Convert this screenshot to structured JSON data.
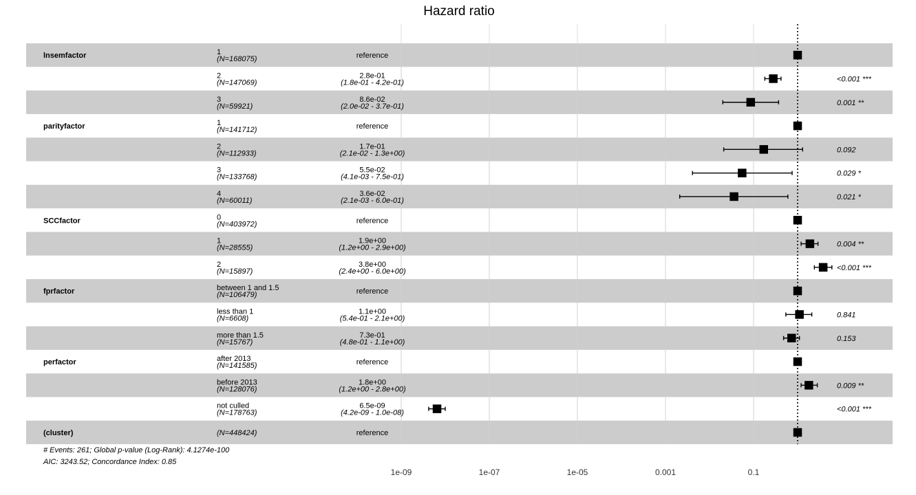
{
  "chart_data": {
    "type": "forest",
    "title": "Hazard ratio",
    "x_scale": "log",
    "x_ticks": [
      {
        "value": 1e-09,
        "label": "1e-09"
      },
      {
        "value": 1e-07,
        "label": "1e-07"
      },
      {
        "value": 1e-05,
        "label": "1e-05"
      },
      {
        "value": 0.001,
        "label": "0.001"
      },
      {
        "value": 0.1,
        "label": "0.1"
      }
    ],
    "xlim": [
      1e-09,
      1
    ],
    "reference_line": 1,
    "rows": [
      {
        "variable": "lnsemfactor",
        "level": "1",
        "n": "(N=168075)",
        "estimate": "reference",
        "ci": "",
        "p": "",
        "hr": 1,
        "lo": null,
        "hi": null
      },
      {
        "variable": "",
        "level": "2",
        "n": "(N=147069)",
        "estimate": "2.8e-01",
        "ci": "(1.8e-01 - 4.2e-01)",
        "p": "<0.001 ***",
        "hr": 0.28,
        "lo": 0.18,
        "hi": 0.42
      },
      {
        "variable": "",
        "level": "3",
        "n": "(N=59921)",
        "estimate": "8.6e-02",
        "ci": "(2.0e-02 - 3.7e-01)",
        "p": "0.001 **",
        "hr": 0.086,
        "lo": 0.02,
        "hi": 0.37
      },
      {
        "variable": "parityfactor",
        "level": "1",
        "n": "(N=141712)",
        "estimate": "reference",
        "ci": "",
        "p": "",
        "hr": 1,
        "lo": null,
        "hi": null
      },
      {
        "variable": "",
        "level": "2",
        "n": "(N=112933)",
        "estimate": "1.7e-01",
        "ci": "(2.1e-02 - 1.3e+00)",
        "p": "0.092",
        "hr": 0.17,
        "lo": 0.021,
        "hi": 1.3
      },
      {
        "variable": "",
        "level": "3",
        "n": "(N=133768)",
        "estimate": "5.5e-02",
        "ci": "(4.1e-03 - 7.5e-01)",
        "p": "0.029 *",
        "hr": 0.055,
        "lo": 0.0041,
        "hi": 0.75
      },
      {
        "variable": "",
        "level": "4",
        "n": "(N=60011)",
        "estimate": "3.6e-02",
        "ci": "(2.1e-03 - 6.0e-01)",
        "p": "0.021 *",
        "hr": 0.036,
        "lo": 0.0021,
        "hi": 0.6
      },
      {
        "variable": "SCCfactor",
        "level": "0",
        "n": "(N=403972)",
        "estimate": "reference",
        "ci": "",
        "p": "",
        "hr": 1,
        "lo": null,
        "hi": null
      },
      {
        "variable": "",
        "level": "1",
        "n": "(N=28555)",
        "estimate": "1.9e+00",
        "ci": "(1.2e+00 - 2.9e+00)",
        "p": "0.004 **",
        "hr": 1.9,
        "lo": 1.2,
        "hi": 2.9
      },
      {
        "variable": "",
        "level": "2",
        "n": "(N=15897)",
        "estimate": "3.8e+00",
        "ci": "(2.4e+00 - 6.0e+00)",
        "p": "<0.001 ***",
        "hr": 3.8,
        "lo": 2.4,
        "hi": 6.0
      },
      {
        "variable": "fprfactor",
        "level": "between 1 and 1.5",
        "n": "(N=106479)",
        "estimate": "reference",
        "ci": "",
        "p": "",
        "hr": 1,
        "lo": null,
        "hi": null
      },
      {
        "variable": "",
        "level": "less than 1",
        "n": "(N=6608)",
        "estimate": "1.1e+00",
        "ci": "(5.4e-01 - 2.1e+00)",
        "p": "0.841",
        "hr": 1.1,
        "lo": 0.54,
        "hi": 2.1
      },
      {
        "variable": "",
        "level": "more than 1.5",
        "n": "(N=15767)",
        "estimate": "7.3e-01",
        "ci": "(4.8e-01 - 1.1e+00)",
        "p": "0.153",
        "hr": 0.73,
        "lo": 0.48,
        "hi": 1.1
      },
      {
        "variable": "perfactor",
        "level": "after 2013",
        "n": "(N=141585)",
        "estimate": "reference",
        "ci": "",
        "p": "",
        "hr": 1,
        "lo": null,
        "hi": null
      },
      {
        "variable": "",
        "level": "before 2013",
        "n": "(N=128076)",
        "estimate": "1.8e+00",
        "ci": "(1.2e+00 - 2.8e+00)",
        "p": "0.009 **",
        "hr": 1.8,
        "lo": 1.2,
        "hi": 2.8
      },
      {
        "variable": "",
        "level": "not culled",
        "n": "(N=178763)",
        "estimate": "6.5e-09",
        "ci": "(4.2e-09 - 1.0e-08)",
        "p": "<0.001 ***",
        "hr": 6.5e-09,
        "lo": 4.2e-09,
        "hi": 1e-08
      },
      {
        "variable": "(cluster)",
        "level": "",
        "n": "(N=448424)",
        "estimate": "reference",
        "ci": "",
        "p": "",
        "hr": 1,
        "lo": null,
        "hi": null
      }
    ],
    "footer": [
      "# Events: 261; Global p-value (Log-Rank): 4.1274e-100",
      "AIC: 3243.52; Concordance Index: 0.85"
    ],
    "colors": {
      "band": "#cccccc",
      "marker": "#000000",
      "grid": "#dddddd"
    }
  }
}
